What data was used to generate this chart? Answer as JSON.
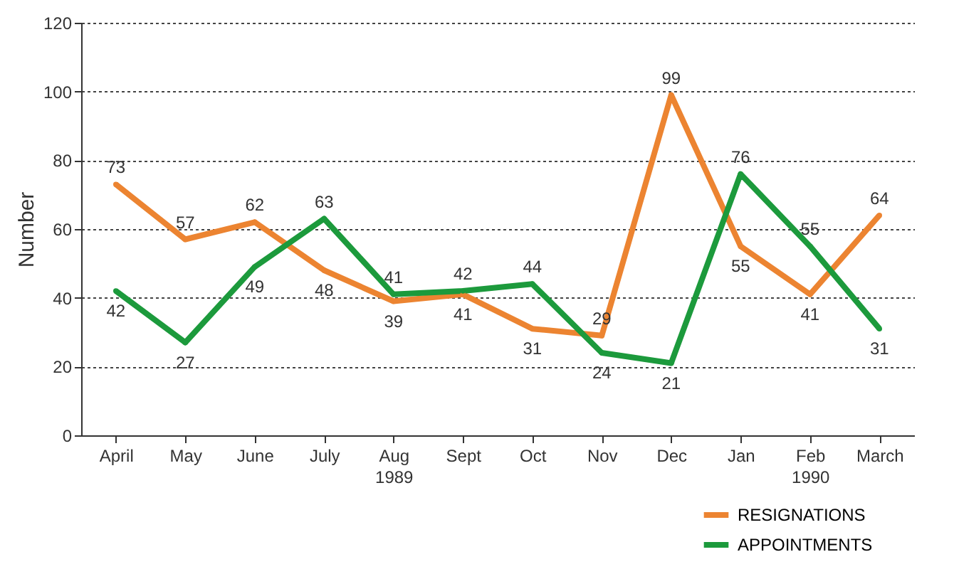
{
  "chart_data": {
    "type": "line",
    "ylabel": "Number",
    "categories": [
      "April",
      "May",
      "June",
      "July",
      "Aug\n1989",
      "Sept",
      "Oct",
      "Nov",
      "Dec",
      "Jan",
      "Feb\n1990",
      "March"
    ],
    "series": [
      {
        "name": "RESIGNATIONS",
        "color": "#ec8431",
        "values": [
          73,
          57,
          62,
          48,
          39,
          41,
          31,
          29,
          99,
          55,
          41,
          64
        ]
      },
      {
        "name": "APPOINTMENTS",
        "color": "#1c9a3c",
        "values": [
          42,
          27,
          49,
          63,
          41,
          42,
          44,
          24,
          21,
          76,
          55,
          31
        ]
      }
    ],
    "ylim": [
      0,
      120
    ],
    "yticks": [
      0,
      20,
      40,
      60,
      80,
      100,
      120
    ],
    "grid": "y",
    "legend": "bottom right",
    "marker": "circle",
    "line_style": "solid",
    "data_labels": true
  }
}
